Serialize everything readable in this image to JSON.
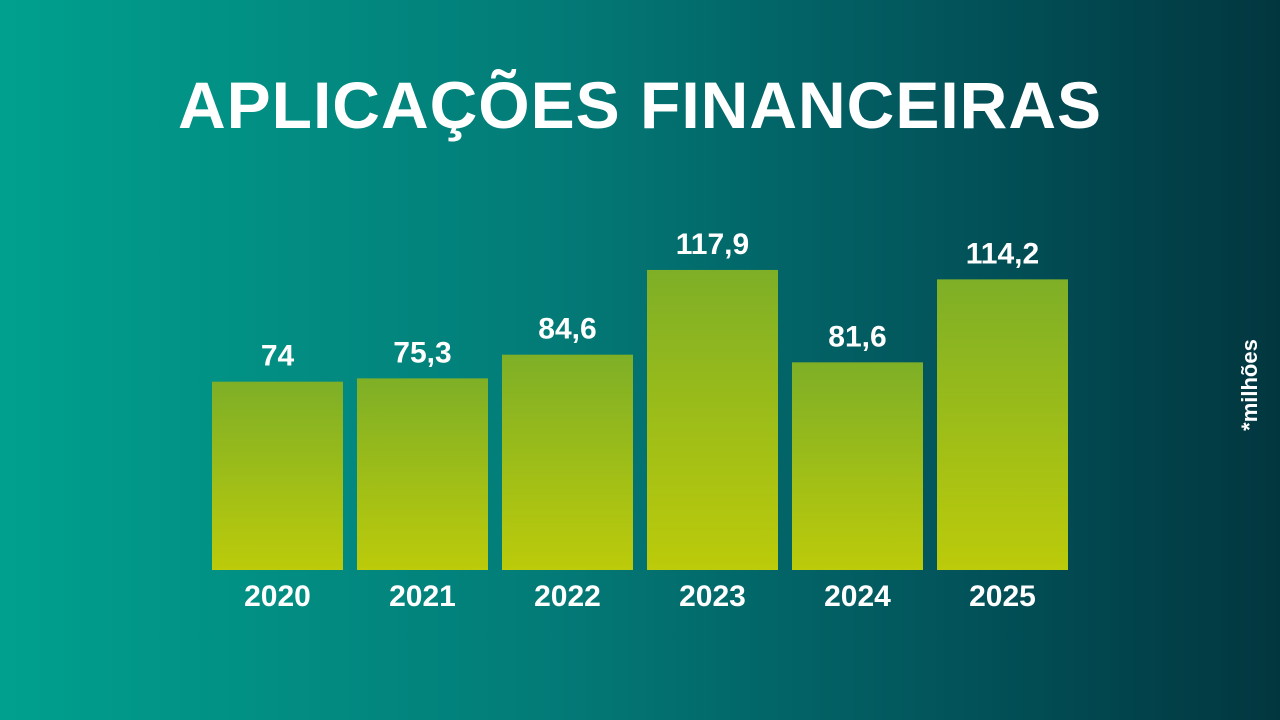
{
  "title": "APLICAÇÕES FINANCEIRAS",
  "unit_note": "*milhões",
  "colors": {
    "bar_top": "#7eaf27",
    "bar_bottom": "#bccb0a",
    "text": "#ffffff"
  },
  "chart_data": {
    "type": "bar",
    "title": "APLICAÇÕES FINANCEIRAS",
    "categories": [
      "2020",
      "2021",
      "2022",
      "2023",
      "2024",
      "2025"
    ],
    "values": [
      74,
      75.3,
      84.6,
      117.9,
      81.6,
      114.2
    ],
    "value_labels": [
      "74",
      "75,3",
      "84,6",
      "117,9",
      "81,6",
      "114,2"
    ],
    "xlabel": "",
    "ylabel": "",
    "ylim": [
      0,
      150
    ],
    "grid": false,
    "legend": "none"
  }
}
